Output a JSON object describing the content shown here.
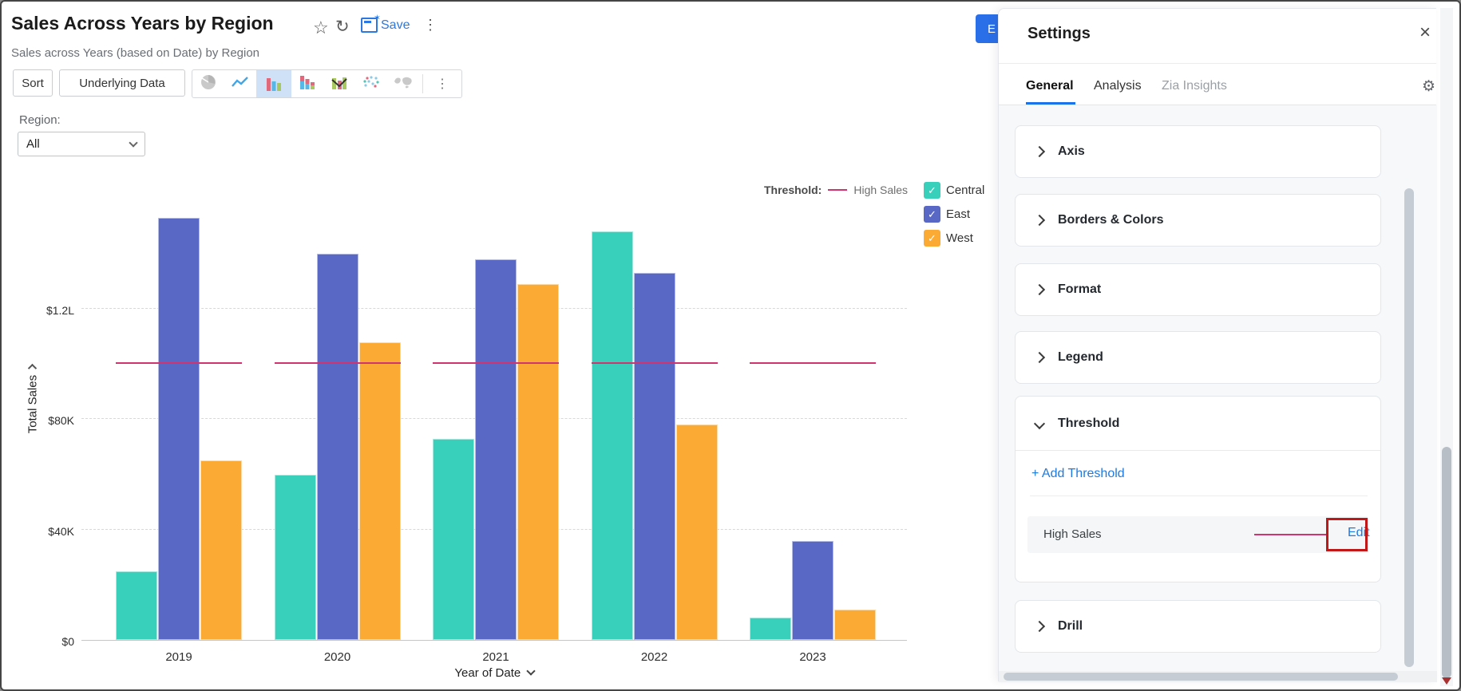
{
  "header": {
    "title": "Sales Across Years by Region",
    "subtitle": "Sales across Years (based on Date) by Region",
    "save_label": "Save"
  },
  "toolbar": {
    "sort_label": "Sort",
    "underlying_data_label": "Underlying Data",
    "selected_chart_type": "bar"
  },
  "filter": {
    "label": "Region:",
    "value": "All"
  },
  "chart_data": {
    "type": "bar",
    "categories": [
      "2019",
      "2020",
      "2021",
      "2022",
      "2023"
    ],
    "series": [
      {
        "name": "Central",
        "color": "#38cfbb",
        "values_k": [
          25,
          60,
          73,
          148,
          8
        ]
      },
      {
        "name": "East",
        "color": "#5a68c5",
        "values_k": [
          153,
          140,
          138,
          133,
          36
        ]
      },
      {
        "name": "West",
        "color": "#fbaa33",
        "values_k": [
          65,
          108,
          129,
          78,
          11
        ]
      }
    ],
    "xlabel": "Year of Date",
    "ylabel": "Total Sales",
    "y_ticks": [
      {
        "k": 0,
        "label": "$0"
      },
      {
        "k": 40,
        "label": "$40K"
      },
      {
        "k": 80,
        "label": "$80K"
      },
      {
        "k": 120,
        "label": "$1.2L"
      }
    ],
    "ylim_k": [
      0,
      165
    ],
    "grid": "horizontal-dashed",
    "legend_position": "right",
    "threshold": {
      "name": "High Sales",
      "value_k": 100,
      "color": "#d0346e"
    }
  },
  "threshold_legend": {
    "label": "Threshold:",
    "name": "High Sales"
  },
  "panel": {
    "title": "Settings",
    "hidden_button_visible_text": "E",
    "tabs": [
      {
        "label": "General"
      },
      {
        "label": "Analysis"
      },
      {
        "label": "Zia Insights"
      }
    ],
    "sections": [
      {
        "label": "Axis"
      },
      {
        "label": "Borders & Colors"
      },
      {
        "label": "Format"
      },
      {
        "label": "Legend"
      }
    ],
    "threshold_section": {
      "label": "Threshold",
      "add_label": "+ Add Threshold",
      "item_name": "High Sales",
      "action_label": "Edit",
      "highlight_color": "#c01818"
    },
    "drill_section": {
      "label": "Drill"
    }
  }
}
